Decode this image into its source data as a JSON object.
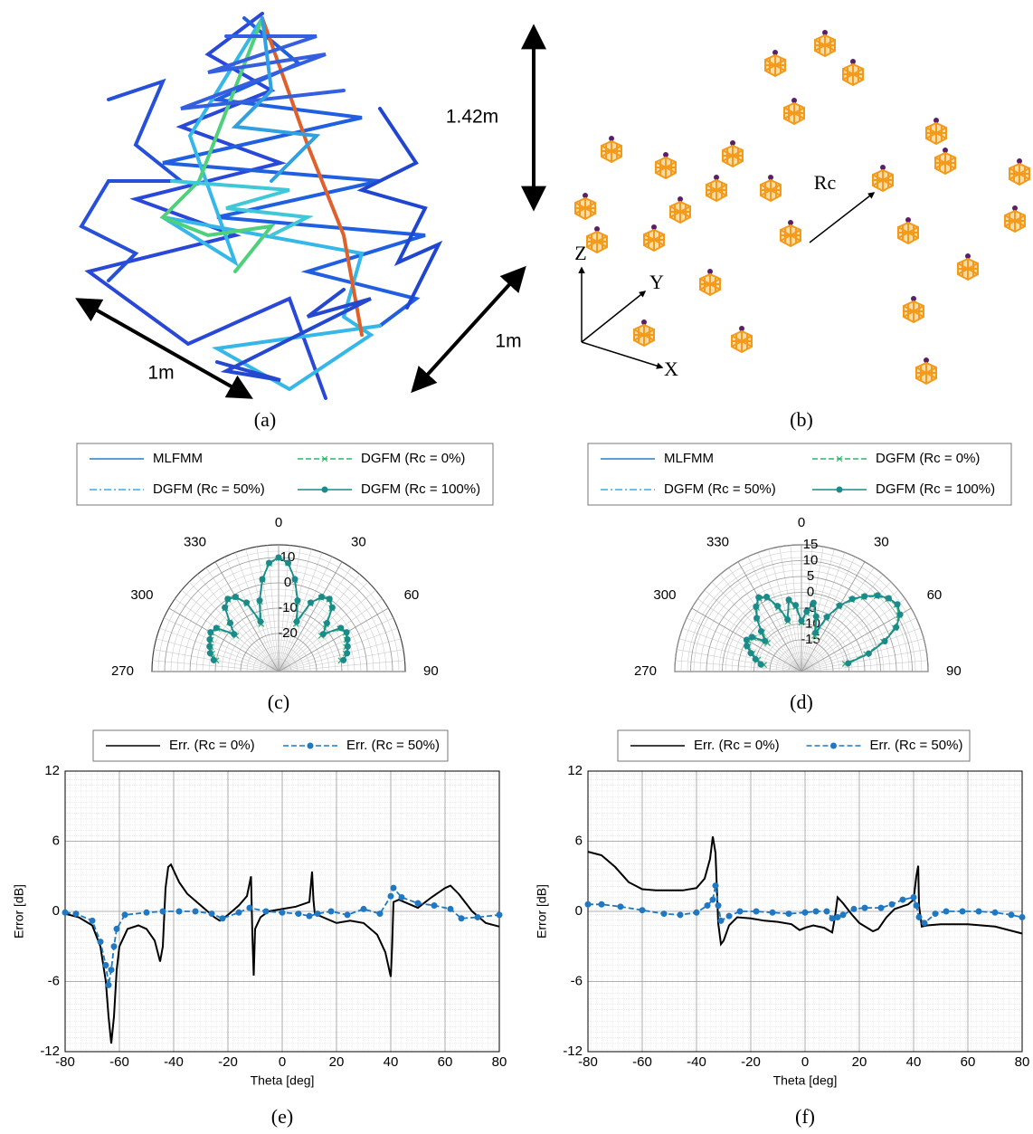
{
  "figure": {
    "captions": [
      "(a)",
      "(b)"
    ],
    "annotations": [
      "1.42m",
      "1m",
      "1m"
    ],
    "axis_labels": [
      "Z",
      "Y",
      "X"
    ],
    "radius_label": "Rc"
  },
  "chart_data": [
    {
      "type": "polar",
      "caption": "(c)",
      "theta": [
        -80,
        -75,
        -70,
        -65,
        -60,
        -55,
        -50,
        -45,
        -40,
        -35,
        -30,
        -25,
        -20,
        -15,
        -10,
        -5,
        0,
        5,
        10,
        15,
        20,
        25,
        30,
        35,
        40,
        45,
        50,
        55,
        60,
        65,
        70,
        75,
        80
      ],
      "thetaticks": [
        270,
        300,
        330,
        0,
        30,
        60,
        90
      ],
      "rlim": [
        -35,
        15
      ],
      "rticks": [
        -20,
        -10,
        0,
        10
      ],
      "series": [
        {
          "name": "MLFMM",
          "color": "#2a7fc1",
          "line_style": "solid",
          "marker": "none",
          "values": [
            -9,
            -7,
            -6,
            -5,
            -4,
            -5,
            -12,
            -8,
            -2,
            0,
            -1,
            -5,
            -14,
            -6,
            2,
            8,
            10,
            8,
            2,
            -6,
            -14,
            -5,
            -1,
            0,
            -2,
            -8,
            -12,
            -5,
            -4,
            -5,
            -6,
            -7,
            -9
          ]
        },
        {
          "name": "DGFM (Rc = 50%)",
          "color": "#35b0e0",
          "line_style": "dashdot",
          "marker": "none",
          "values": [
            -9.2,
            -7.1,
            -6,
            -5.2,
            -4,
            -5.1,
            -11.5,
            -8,
            -2.1,
            0,
            -1,
            -5.2,
            -13.5,
            -6,
            2,
            8,
            10,
            8,
            2.1,
            -6,
            -13.8,
            -5,
            -1,
            0.1,
            -2,
            -8.2,
            -12,
            -5,
            -4.1,
            -5,
            -6.2,
            -7,
            -9.1
          ]
        },
        {
          "name": "DGFM (Rc = 0%)",
          "color": "#2fb56a",
          "line_style": "dashed",
          "marker": "x",
          "values": [
            -10,
            -7.8,
            -6.5,
            -5.5,
            -4.3,
            -5.5,
            -13,
            -7.5,
            -2.3,
            -0.3,
            -1.2,
            -5.5,
            -15,
            -6.4,
            1.8,
            7.8,
            9.8,
            7.9,
            1.7,
            -6.5,
            -15,
            -5.4,
            -1.3,
            -0.2,
            -2.4,
            -8.6,
            -13,
            -5.5,
            -4.4,
            -5.4,
            -6.6,
            -7.6,
            -10
          ]
        },
        {
          "name": "DGFM (Rc = 100%)",
          "color": "#1a8a8a",
          "line_style": "solid",
          "marker": "dot",
          "values": [
            -9,
            -7,
            -6,
            -5,
            -4,
            -5,
            -12,
            -8,
            -2,
            0,
            -1,
            -5,
            -14,
            -6,
            2,
            8,
            10,
            8,
            2,
            -6,
            -14,
            -5,
            -1,
            0,
            -2,
            -8,
            -12,
            -5,
            -4,
            -5,
            -6,
            -7,
            -9
          ]
        }
      ]
    },
    {
      "type": "polar",
      "caption": "(d)",
      "theta": [
        -80,
        -75,
        -70,
        -65,
        -60,
        -55,
        -50,
        -45,
        -40,
        -35,
        -30,
        -25,
        -20,
        -15,
        -10,
        -5,
        0,
        5,
        10,
        15,
        20,
        25,
        30,
        35,
        40,
        45,
        50,
        55,
        60,
        65,
        70,
        75,
        80
      ],
      "thetaticks": [
        270,
        300,
        330,
        0,
        30,
        60,
        90
      ],
      "rlim": [
        -25,
        15
      ],
      "rticks": [
        -15,
        -10,
        -5,
        0,
        5,
        10,
        15
      ],
      "series": [
        {
          "name": "MLFMM",
          "color": "#2a7fc1",
          "line_style": "solid",
          "marker": "none",
          "values": [
            -12,
            -10,
            -8,
            -6,
            -5,
            -6,
            -10,
            -7,
            -3,
            0,
            2,
            1,
            -3,
            -8,
            -2,
            -4,
            -9,
            -6,
            -3,
            -7,
            -12,
            -6,
            -1,
            3,
            6,
            9,
            11,
            12,
            11,
            8,
            3,
            -3,
            -10
          ]
        },
        {
          "name": "DGFM (Rc = 50%)",
          "color": "#35b0e0",
          "line_style": "dashdot",
          "marker": "none",
          "values": [
            -12.2,
            -10,
            -8.1,
            -6,
            -5,
            -6.2,
            -9.8,
            -7,
            -3,
            0.1,
            2,
            1,
            -3.2,
            -7.8,
            -2,
            -4.1,
            -9,
            -6,
            -3,
            -7.1,
            -11.8,
            -6,
            -1,
            3,
            6.1,
            9,
            11,
            12,
            11,
            8,
            3.1,
            -3,
            -10.2
          ]
        },
        {
          "name": "DGFM (Rc = 0%)",
          "color": "#2fb56a",
          "line_style": "dashed",
          "marker": "x",
          "values": [
            -13,
            -10.8,
            -8.5,
            -6.4,
            -5.4,
            -6.6,
            -11,
            -7.5,
            -3.3,
            -0.4,
            1.7,
            0.6,
            -3.6,
            -8.6,
            -2.3,
            -4.5,
            -9.6,
            -6.5,
            -3.4,
            -7.6,
            -13,
            -6.5,
            -1.4,
            2.6,
            5.7,
            8.6,
            10.7,
            11.7,
            10.6,
            7.6,
            2.5,
            -3.8,
            -11
          ]
        },
        {
          "name": "DGFM (Rc = 100%)",
          "color": "#1a8a8a",
          "line_style": "solid",
          "marker": "dot",
          "values": [
            -12,
            -10,
            -8,
            -6,
            -5,
            -6,
            -10,
            -7,
            -3,
            0,
            2,
            1,
            -3,
            -8,
            -2,
            -4,
            -9,
            -6,
            -3,
            -7,
            -12,
            -6,
            -1,
            3,
            6,
            9,
            11,
            12,
            11,
            8,
            3,
            -3,
            -10
          ]
        }
      ]
    },
    {
      "type": "line",
      "caption": "(e)",
      "xlabel": "Theta [deg]",
      "ylabel": "Error [dB]",
      "xlim": [
        -80,
        80
      ],
      "ylim": [
        -12,
        12
      ],
      "xticks": [
        -80,
        -60,
        -40,
        -20,
        0,
        20,
        40,
        60,
        80
      ],
      "yticks": [
        -12,
        -6,
        0,
        6,
        12
      ],
      "grid": true,
      "series": [
        {
          "name": "Err. (Rc = 0%)",
          "color": "#000000",
          "line_style": "solid",
          "marker": "none",
          "x": [
            -80,
            -75,
            -70,
            -67,
            -65,
            -64,
            -63,
            -62,
            -61,
            -60,
            -57,
            -53,
            -50,
            -47,
            -45,
            -44,
            -43,
            -42,
            -41,
            -38,
            -35,
            -30,
            -25,
            -23,
            -20,
            -16,
            -13,
            -11.5,
            -11,
            -10.5,
            -10,
            -8,
            -5,
            0,
            5,
            10,
            11,
            11.5,
            12,
            15,
            20,
            25,
            30,
            35,
            38,
            40,
            40.5,
            41,
            43,
            45,
            50,
            55,
            60,
            62,
            65,
            70,
            75,
            80
          ],
          "values": [
            -0.2,
            -0.5,
            -1.2,
            -3,
            -6,
            -9,
            -11.3,
            -9,
            -5,
            -3,
            -1.5,
            -1.2,
            -1.5,
            -2.5,
            -4.3,
            -3,
            2,
            3.8,
            4,
            2.5,
            1.5,
            0.5,
            -0.5,
            -0.8,
            -0.3,
            0.5,
            1.3,
            3,
            -2,
            -5.5,
            -1.5,
            -0.5,
            0,
            0.2,
            0.4,
            0.8,
            3.4,
            1,
            -0.2,
            -0.5,
            -1,
            -0.8,
            -1,
            -2,
            -3.5,
            -5.6,
            -3,
            0.8,
            1,
            0.8,
            0.3,
            1.2,
            2,
            2.2,
            1.5,
            0,
            -1,
            -1.3
          ]
        },
        {
          "name": "Err. (Rc = 50%)",
          "color": "#1f78c1",
          "line_style": "dashed",
          "marker": "dot",
          "x": [
            -80,
            -76,
            -70,
            -67,
            -65,
            -64,
            -63,
            -62,
            -61,
            -58,
            -50,
            -44,
            -38,
            -32,
            -26,
            -22,
            -16,
            -12,
            -6,
            0,
            6,
            10,
            13,
            18,
            24,
            30,
            36,
            40,
            41,
            44,
            50,
            56,
            62,
            66,
            72,
            80
          ],
          "values": [
            -0.1,
            -0.2,
            -0.8,
            -2.6,
            -4.6,
            -6.3,
            -5,
            -3,
            -1.5,
            -0.3,
            -0.1,
            0,
            0,
            0,
            -0.2,
            -0.6,
            -0.1,
            0.3,
            0,
            -0.1,
            -0.2,
            -0.4,
            -0.2,
            0,
            -0.3,
            0.2,
            -0.2,
            1.3,
            2,
            1.2,
            0.7,
            0.5,
            0.2,
            -0.6,
            -0.5,
            -0.3
          ]
        }
      ]
    },
    {
      "type": "line",
      "caption": "(f)",
      "xlabel": "Theta [deg]",
      "ylabel": "Error [dB]",
      "xlim": [
        -80,
        80
      ],
      "ylim": [
        -12,
        12
      ],
      "xticks": [
        -80,
        -60,
        -40,
        -20,
        0,
        20,
        40,
        60,
        80
      ],
      "yticks": [
        -12,
        -6,
        0,
        6,
        12
      ],
      "grid": true,
      "series": [
        {
          "name": "Err. (Rc = 0%)",
          "color": "#000000",
          "line_style": "solid",
          "marker": "none",
          "x": [
            -80,
            -75,
            -70,
            -65,
            -60,
            -55,
            -50,
            -45,
            -40,
            -37,
            -35,
            -34,
            -33,
            -32,
            -31,
            -30,
            -28,
            -25,
            -20,
            -15,
            -10,
            -5,
            -2,
            0,
            3,
            7,
            10,
            11,
            12,
            14,
            17,
            20,
            25,
            27,
            30,
            33,
            38,
            40,
            41,
            41.7,
            42,
            43,
            45,
            50,
            60,
            70,
            80
          ],
          "values": [
            5.1,
            4.8,
            3.8,
            2.5,
            1.9,
            1.8,
            1.8,
            1.8,
            2,
            2.8,
            4.5,
            6.4,
            5,
            -1,
            -2.8,
            -2.5,
            -1.2,
            -0.5,
            -0.6,
            -0.8,
            -0.9,
            -1.1,
            -1.6,
            -1.4,
            -1.2,
            -1.4,
            -1.8,
            -0.5,
            1.2,
            0.7,
            -0.2,
            -1,
            -1.7,
            -1.5,
            -0.5,
            0.2,
            0.6,
            1,
            3,
            3.9,
            0.5,
            -1.3,
            -1.2,
            -1.1,
            -1.1,
            -1.3,
            -1.9
          ]
        },
        {
          "name": "Err. (Rc = 50%)",
          "color": "#1f78c1",
          "line_style": "dashed",
          "marker": "dot",
          "x": [
            -80,
            -75,
            -68,
            -60,
            -52,
            -46,
            -40,
            -36,
            -34,
            -33,
            -32,
            -31,
            -28,
            -24,
            -18,
            -12,
            -6,
            0,
            4,
            8,
            10,
            12,
            14,
            18,
            22,
            28,
            32,
            36,
            40,
            41,
            42,
            44,
            48,
            52,
            58,
            64,
            70,
            76,
            80
          ],
          "values": [
            0.6,
            0.6,
            0.4,
            0.1,
            -0.2,
            -0.3,
            -0.1,
            0.5,
            1,
            2.2,
            0.5,
            -0.8,
            -0.4,
            0,
            0,
            -0.1,
            -0.2,
            -0.1,
            0,
            0,
            -0.6,
            -0.5,
            -0.3,
            0.2,
            0.3,
            0.3,
            0.6,
            1,
            1.2,
            0.5,
            -0.5,
            -1,
            -0.2,
            0,
            0,
            0,
            -0.1,
            -0.3,
            -0.5
          ]
        }
      ]
    }
  ]
}
